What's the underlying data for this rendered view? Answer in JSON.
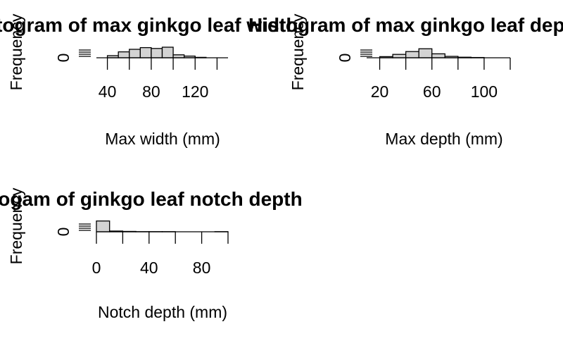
{
  "chart_data": [
    {
      "type": "bar",
      "title": "Histogram of max ginkgo leaf width",
      "xlabel": "Max width (mm)",
      "ylabel": "Frequency",
      "bin_width": 10,
      "bins": [
        [
          30,
          40
        ],
        [
          40,
          50
        ],
        [
          50,
          60
        ],
        [
          60,
          70
        ],
        [
          70,
          80
        ],
        [
          80,
          90
        ],
        [
          90,
          100
        ],
        [
          100,
          110
        ],
        [
          110,
          120
        ],
        [
          120,
          130
        ],
        [
          130,
          140
        ],
        [
          140,
          150
        ]
      ],
      "values": [
        0,
        5,
        14,
        20,
        24,
        22,
        25,
        7,
        4,
        1,
        0,
        0
      ],
      "xlim": [
        30,
        150
      ],
      "x_ticks": [
        "40",
        "80",
        "120"
      ],
      "y_ticks": [
        "0"
      ],
      "fill": "#d3d3d3"
    },
    {
      "type": "bar",
      "title": "Histogram of max ginkgo leaf depth",
      "xlabel": "Max depth (mm)",
      "ylabel": "Frequency",
      "bin_width": 10,
      "bins": [
        [
          10,
          20
        ],
        [
          20,
          30
        ],
        [
          30,
          40
        ],
        [
          40,
          50
        ],
        [
          50,
          60
        ],
        [
          60,
          70
        ],
        [
          70,
          80
        ],
        [
          80,
          90
        ],
        [
          90,
          100
        ],
        [
          100,
          110
        ],
        [
          110,
          120
        ]
      ],
      "values": [
        0,
        4,
        12,
        22,
        32,
        14,
        5,
        2,
        1,
        0,
        0
      ],
      "xlim": [
        10,
        120
      ],
      "x_ticks": [
        "20",
        "60",
        "100"
      ],
      "y_ticks": [
        "0"
      ],
      "fill": "#d3d3d3"
    },
    {
      "type": "bar",
      "title": "Histogam of ginkgo leaf notch depth",
      "xlabel": "Notch depth (mm)",
      "ylabel": "Frequency",
      "bin_width": 10,
      "bins": [
        [
          0,
          10
        ],
        [
          10,
          20
        ],
        [
          20,
          30
        ],
        [
          30,
          40
        ],
        [
          40,
          50
        ],
        [
          50,
          60
        ],
        [
          60,
          70
        ],
        [
          70,
          80
        ],
        [
          80,
          90
        ],
        [
          90,
          100
        ]
      ],
      "values": [
        90,
        6,
        3,
        1,
        1,
        1,
        0,
        0,
        0,
        1
      ],
      "xlim": [
        0,
        100
      ],
      "x_ticks": [
        "0",
        "40",
        "80"
      ],
      "y_ticks": [
        "0"
      ],
      "fill": "#d3d3d3"
    }
  ]
}
